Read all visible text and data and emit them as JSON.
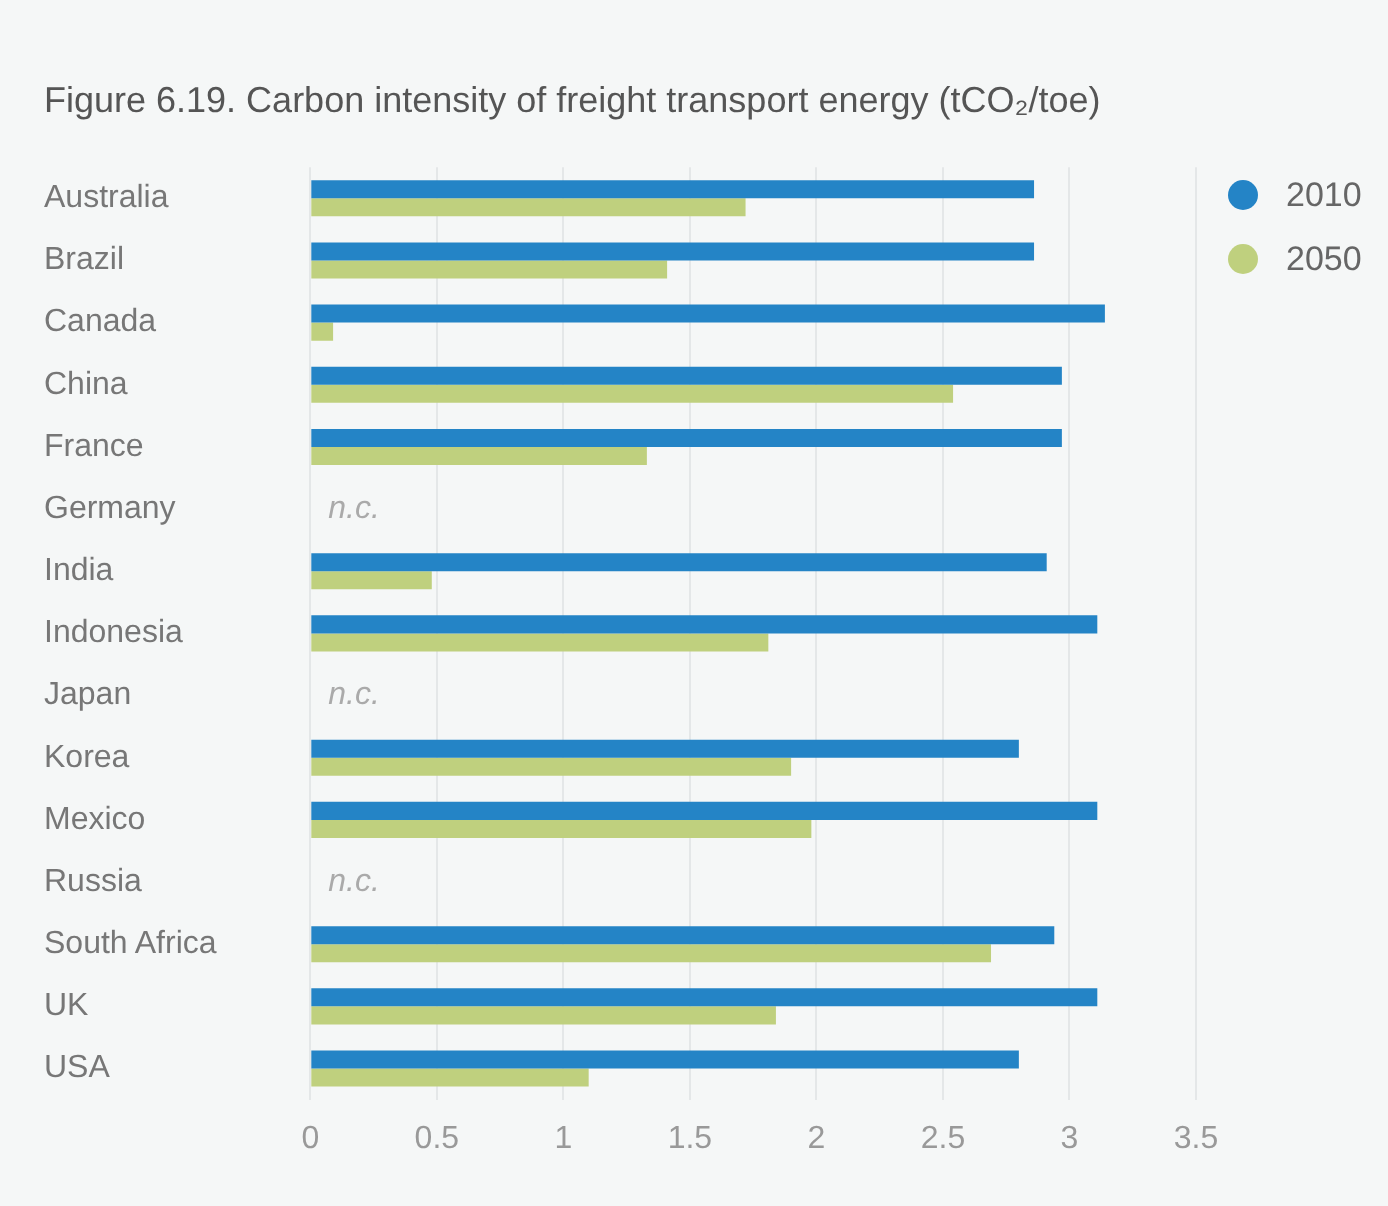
{
  "chart_data": {
    "type": "bar",
    "orientation": "horizontal",
    "title": "Figure 6.19. Carbon intensity of freight transport energy (tCO₂/toe)",
    "categories": [
      "Australia",
      "Brazil",
      "Canada",
      "China",
      "France",
      "Germany",
      "India",
      "Indonesia",
      "Japan",
      "Korea",
      "Mexico",
      "Russia",
      "South Africa",
      "UK",
      "USA"
    ],
    "series": [
      {
        "name": "2010",
        "color": "#2484c6",
        "values": [
          2.86,
          2.86,
          3.14,
          2.97,
          2.97,
          null,
          2.91,
          3.11,
          null,
          2.8,
          3.11,
          null,
          2.94,
          3.11,
          2.8
        ]
      },
      {
        "name": "2050",
        "color": "#bfd07e",
        "values": [
          1.72,
          1.41,
          0.09,
          2.54,
          1.33,
          null,
          0.48,
          1.81,
          null,
          1.9,
          1.98,
          null,
          2.69,
          1.84,
          1.1
        ]
      }
    ],
    "xlim": [
      0,
      3.5
    ],
    "xticks": [
      0,
      0.5,
      1,
      1.5,
      2,
      2.5,
      3,
      3.5
    ],
    "grid": "x",
    "legend": "top right",
    "annotations": [
      "n.c.",
      "n.c.",
      "n.c."
    ]
  }
}
